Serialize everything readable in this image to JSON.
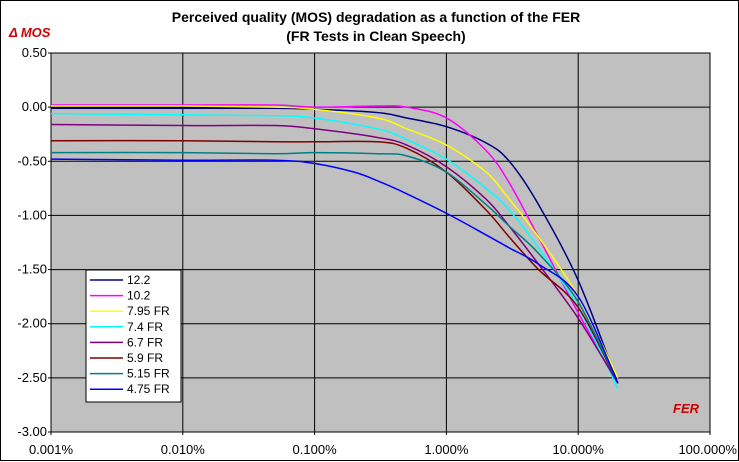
{
  "chart_data": {
    "type": "line",
    "title": "Perceived quality (MOS) degradation as a function of the FER",
    "subtitle": "(FR Tests in Clean Speech)",
    "xlabel": "FER",
    "ylabel": "Δ MOS",
    "x_scale": "log",
    "xlim": [
      0.001,
      100
    ],
    "ylim": [
      -3.0,
      0.5
    ],
    "x_ticks": [
      0.001,
      0.01,
      0.1,
      1,
      10,
      100
    ],
    "x_tick_labels": [
      "0.001%",
      "0.010%",
      "0.100%",
      "1.000%",
      "10.000%",
      "100.000%"
    ],
    "y_ticks": [
      0.5,
      0.0,
      -0.5,
      -1.0,
      -1.5,
      -2.0,
      -2.5,
      -3.0
    ],
    "y_tick_labels": [
      "0.50",
      "0.00",
      "-0.50",
      "-1.00",
      "-1.50",
      "-2.00",
      "-2.50",
      "-3.00"
    ],
    "grid": true,
    "legend_position": "lower-left",
    "plot_background": "#c0c0c0",
    "axis_label_color": "#cc0000",
    "series": [
      {
        "name": "12.2",
        "color": "#000080",
        "x": [
          0.001,
          0.01,
          0.05,
          0.1,
          0.3,
          0.5,
          1.0,
          2.0,
          3.0,
          5.0,
          10.0,
          20.0
        ],
        "y": [
          -0.01,
          -0.01,
          -0.01,
          -0.02,
          -0.05,
          -0.1,
          -0.18,
          -0.33,
          -0.5,
          -0.9,
          -1.6,
          -2.55
        ]
      },
      {
        "name": "10.2",
        "color": "#ff00ff",
        "x": [
          0.001,
          0.01,
          0.05,
          0.1,
          0.3,
          0.5,
          1.0,
          2.0,
          3.0,
          5.0,
          10.0,
          20.0
        ],
        "y": [
          0.02,
          0.02,
          0.02,
          0.0,
          0.01,
          0.0,
          -0.1,
          -0.4,
          -0.7,
          -1.2,
          -1.9,
          -2.55
        ]
      },
      {
        "name": "7.95 FR",
        "color": "#ffff00",
        "x": [
          0.001,
          0.01,
          0.05,
          0.1,
          0.3,
          0.5,
          1.0,
          2.0,
          3.0,
          5.0,
          10.0,
          20.0
        ],
        "y": [
          0.01,
          0.01,
          0.0,
          -0.02,
          -0.1,
          -0.2,
          -0.35,
          -0.6,
          -0.85,
          -1.2,
          -1.75,
          -2.5
        ]
      },
      {
        "name": "7.4 FR",
        "color": "#00ffff",
        "x": [
          0.001,
          0.01,
          0.05,
          0.1,
          0.3,
          0.5,
          1.0,
          2.0,
          3.0,
          5.0,
          10.0,
          20.0
        ],
        "y": [
          -0.06,
          -0.07,
          -0.08,
          -0.1,
          -0.2,
          -0.3,
          -0.48,
          -0.75,
          -0.95,
          -1.3,
          -1.85,
          -2.6
        ]
      },
      {
        "name": "6.7 FR",
        "color": "#800080",
        "x": [
          0.001,
          0.01,
          0.05,
          0.1,
          0.3,
          0.5,
          1.0,
          2.0,
          3.0,
          5.0,
          10.0,
          20.0
        ],
        "y": [
          -0.16,
          -0.17,
          -0.17,
          -0.2,
          -0.28,
          -0.35,
          -0.55,
          -0.85,
          -1.1,
          -1.45,
          -1.95,
          -2.55
        ]
      },
      {
        "name": "5.9 FR",
        "color": "#800000",
        "x": [
          0.001,
          0.01,
          0.05,
          0.1,
          0.3,
          0.5,
          1.0,
          2.0,
          3.0,
          5.0,
          10.0,
          20.0
        ],
        "y": [
          -0.31,
          -0.31,
          -0.32,
          -0.32,
          -0.32,
          -0.38,
          -0.6,
          -0.95,
          -1.2,
          -1.5,
          -1.85,
          -2.55
        ]
      },
      {
        "name": "5.15 FR",
        "color": "#008080",
        "x": [
          0.001,
          0.01,
          0.05,
          0.1,
          0.3,
          0.5,
          1.0,
          2.0,
          3.0,
          5.0,
          10.0,
          20.0
        ],
        "y": [
          -0.42,
          -0.42,
          -0.43,
          -0.42,
          -0.43,
          -0.45,
          -0.6,
          -0.9,
          -1.1,
          -1.35,
          -1.8,
          -2.55
        ]
      },
      {
        "name": "4.75 FR",
        "color": "#0000ff",
        "x": [
          0.001,
          0.01,
          0.05,
          0.1,
          0.2,
          0.3,
          0.5,
          1.0,
          2.0,
          3.0,
          5.0,
          10.0,
          20.0
        ],
        "y": [
          -0.48,
          -0.49,
          -0.49,
          -0.52,
          -0.6,
          -0.68,
          -0.8,
          -0.98,
          -1.18,
          -1.3,
          -1.45,
          -1.75,
          -2.55
        ]
      }
    ]
  }
}
